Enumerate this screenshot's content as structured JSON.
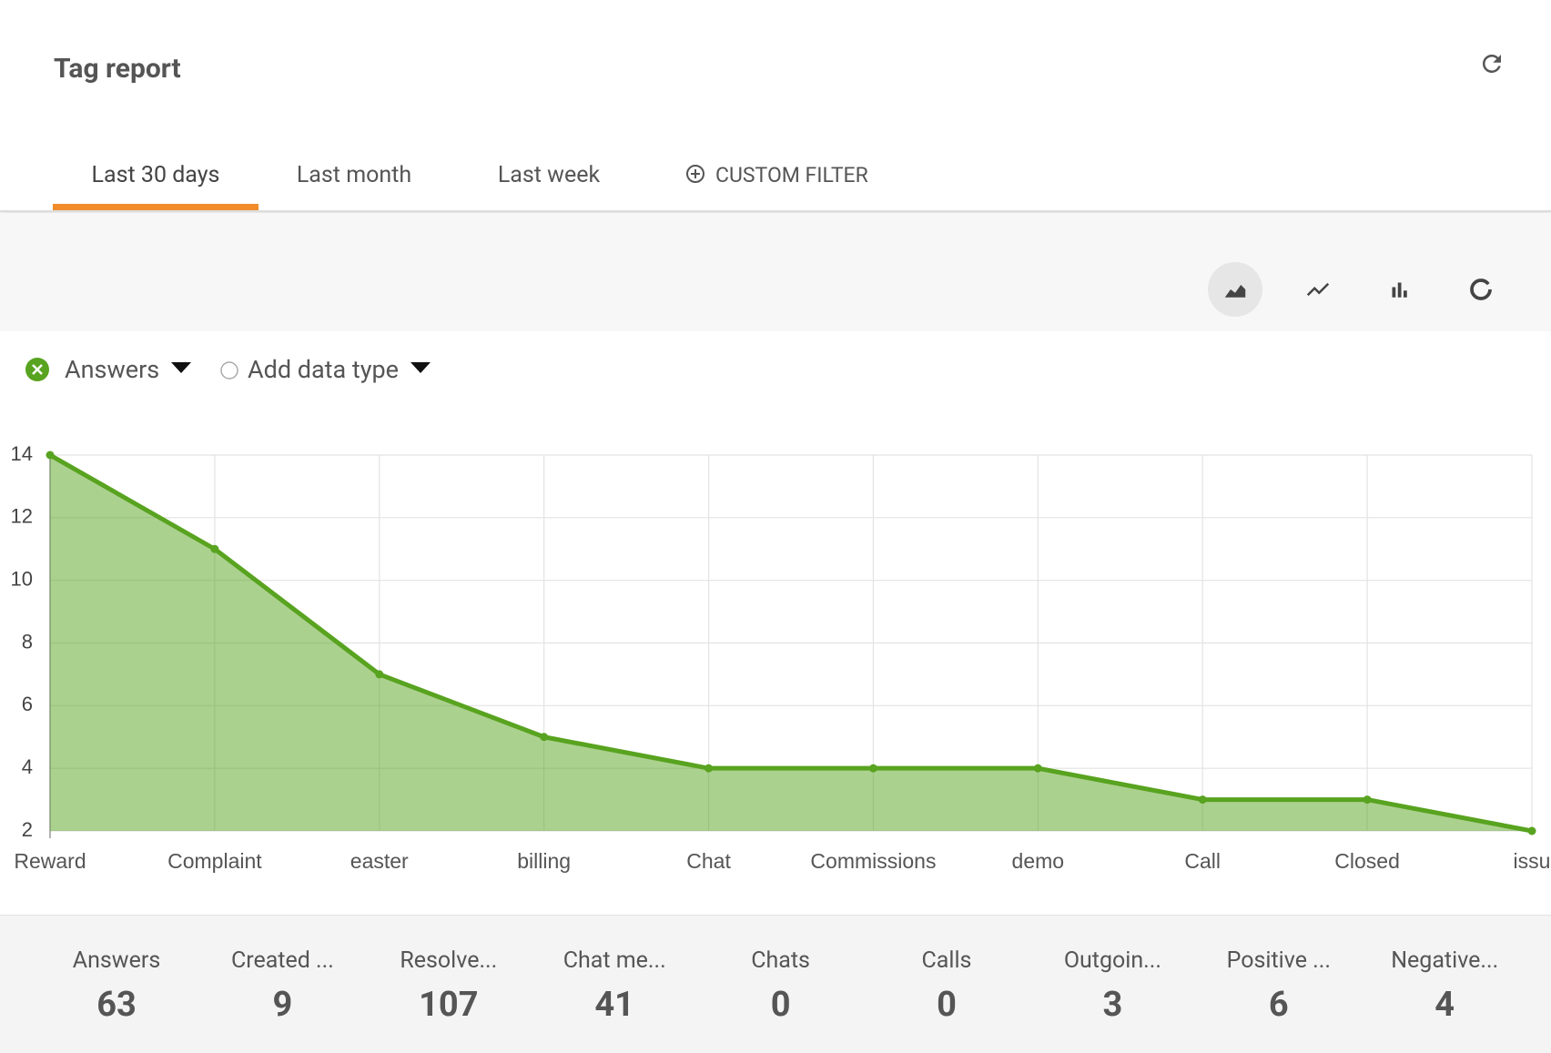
{
  "header": {
    "title": "Tag report"
  },
  "tabs": [
    "Last 30 days",
    "Last month",
    "Last week",
    "CUSTOM FILTER"
  ],
  "legend": {
    "series_label": "Answers",
    "add_label": "Add data type"
  },
  "chart_data": {
    "type": "area",
    "categories": [
      "Reward",
      "Complaint",
      "easter",
      "billing",
      "Chat",
      "Commissions",
      "demo",
      "Call",
      "Closed",
      "issu"
    ],
    "series": [
      {
        "name": "Answers",
        "color": "#58a31f",
        "values": [
          14,
          11,
          7,
          5,
          4,
          4,
          4,
          3,
          3,
          2
        ]
      }
    ],
    "ylim": [
      2,
      14
    ],
    "yticks": [
      2,
      4,
      6,
      8,
      10,
      12,
      14
    ],
    "grid": true
  },
  "stats": [
    {
      "label": "Answers",
      "value": 63
    },
    {
      "label": "Created ...",
      "value": 9
    },
    {
      "label": "Resolve...",
      "value": 107
    },
    {
      "label": "Chat me...",
      "value": 41
    },
    {
      "label": "Chats",
      "value": 0
    },
    {
      "label": "Calls",
      "value": 0
    },
    {
      "label": "Outgoin...",
      "value": 3
    },
    {
      "label": "Positive ...",
      "value": 6
    },
    {
      "label": "Negative...",
      "value": 4
    }
  ]
}
